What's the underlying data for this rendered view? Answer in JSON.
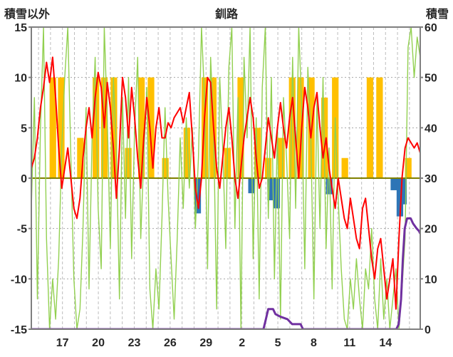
{
  "chart_data": {
    "type": "line",
    "title": "釧路",
    "left_axis": {
      "label": "積雪以外",
      "min": -15,
      "max": 15,
      "ticks": [
        15,
        10,
        5,
        0,
        -5,
        -10,
        -15
      ]
    },
    "right_axis": {
      "label": "積雪",
      "min": 0,
      "max": 60,
      "ticks": [
        60,
        50,
        40,
        30,
        20,
        10,
        0
      ]
    },
    "x_axis": {
      "min": -0.6,
      "max": 31.9,
      "tick_positions": [
        2,
        5,
        8,
        11,
        14,
        17,
        20,
        23,
        26,
        29
      ],
      "tick_labels": [
        "17",
        "20",
        "23",
        "26",
        "29",
        "2",
        "5",
        "8",
        "11",
        "14"
      ],
      "gridline_every_day": true
    },
    "grid": {
      "h_values": [
        10,
        5,
        -5,
        -10
      ],
      "zero_line_color": "#808000"
    },
    "series": [
      {
        "name": "sunshine-bars",
        "type": "bar",
        "axis": "left",
        "color": "#FFC000",
        "bar_width_days": 0.55,
        "points": [
          [
            1.2,
            10
          ],
          [
            1.9,
            10
          ],
          [
            3.5,
            4
          ],
          [
            4.8,
            10
          ],
          [
            5.5,
            10
          ],
          [
            6.3,
            10
          ],
          [
            7.5,
            3
          ],
          [
            8.6,
            10
          ],
          [
            9.4,
            10
          ],
          [
            10.6,
            2
          ],
          [
            12.4,
            5
          ],
          [
            13.9,
            10
          ],
          [
            14.6,
            10
          ],
          [
            15.8,
            3
          ],
          [
            16.9,
            10
          ],
          [
            18.3,
            5
          ],
          [
            19.2,
            2
          ],
          [
            20.3,
            4
          ],
          [
            21.2,
            10
          ],
          [
            21.9,
            10
          ],
          [
            22.8,
            10
          ],
          [
            23.9,
            8
          ],
          [
            24.8,
            10
          ],
          [
            25.6,
            2
          ],
          [
            27.7,
            10
          ],
          [
            28.5,
            10
          ],
          [
            30.9,
            2
          ]
        ]
      },
      {
        "name": "precip-bars",
        "type": "bar",
        "axis": "left",
        "color": "#2E75B6",
        "bar_width_days": 0.55,
        "points": [
          [
            13.3,
            -3.5
          ],
          [
            17.8,
            -1.5
          ],
          [
            19.4,
            -2.2
          ],
          [
            19.9,
            -3.0
          ],
          [
            24.3,
            -1.6
          ],
          [
            29.7,
            -1.2
          ],
          [
            30.2,
            -3.8
          ],
          [
            30.5,
            -2.6
          ]
        ]
      },
      {
        "name": "green-line",
        "type": "line",
        "axis": "left",
        "color": "#92D050",
        "width": 1.4,
        "values": [
          -3,
          8,
          -12,
          5,
          15,
          -6,
          -15,
          -10,
          -14,
          -8,
          3,
          10,
          15,
          2,
          -10,
          -15,
          -13,
          -5,
          7,
          -11,
          4,
          12,
          -3,
          -9,
          15,
          6,
          -7,
          10,
          3,
          -12,
          8,
          -4,
          10,
          -8,
          5,
          12,
          -6,
          2,
          9,
          -11,
          -15,
          -9,
          -13,
          -4,
          7,
          -2,
          -8,
          -14,
          -6,
          4,
          -3,
          6,
          -1,
          5,
          -5,
          2,
          15,
          8,
          -9,
          12,
          5,
          -13,
          10,
          3,
          -7,
          11,
          15,
          -5,
          8,
          -15,
          12,
          4,
          15,
          -8,
          6,
          -12,
          9,
          15,
          -4,
          10,
          -10,
          5,
          -14,
          8,
          2,
          -6,
          12,
          -3,
          15,
          7,
          -9,
          11,
          4,
          -12,
          8,
          -5,
          10,
          -7,
          3,
          -11,
          6,
          -2,
          -9,
          -14,
          -15,
          -10,
          -13,
          -8,
          -12,
          -15,
          -9,
          -11,
          -5,
          -12,
          -15,
          -8,
          -14,
          -10,
          -15,
          -12,
          -9,
          -15,
          -11,
          -6,
          13,
          15,
          10,
          14,
          12
        ]
      },
      {
        "name": "temperature-line",
        "type": "line",
        "axis": "left",
        "color": "#FF0000",
        "width": 2,
        "values": [
          1,
          2,
          4,
          7,
          9,
          11.5,
          9.5,
          12,
          8,
          3,
          -1,
          1,
          3,
          0,
          -3,
          -4,
          -2,
          2,
          5,
          7,
          4,
          8,
          10.5,
          9,
          5,
          9.5,
          7,
          3,
          -2,
          3,
          10,
          8,
          4,
          9,
          6,
          2,
          -1,
          4,
          8,
          5,
          1,
          5,
          7,
          4,
          4,
          5.5,
          5,
          6,
          6.5,
          7,
          5.5,
          7,
          8.5,
          4,
          -1,
          -3,
          0,
          6,
          10,
          9.5,
          5,
          1,
          -1,
          2,
          5,
          7,
          4,
          0,
          -2,
          1,
          4,
          6,
          8,
          6,
          2,
          -1,
          0,
          3,
          6,
          4,
          2,
          5,
          7.5,
          5,
          3,
          6,
          8,
          4,
          0,
          5,
          9,
          7,
          4,
          7,
          8.5,
          5,
          2,
          4,
          1,
          -1,
          -3,
          0,
          -2,
          -4,
          -5,
          -2,
          -4,
          -6,
          -7,
          -3,
          -2,
          -5,
          -8,
          -10,
          -7,
          -6,
          -9,
          -12,
          -10,
          -8,
          -13,
          -6,
          0,
          3,
          4,
          3.5,
          3,
          3.5,
          2.5
        ]
      },
      {
        "name": "snow-depth-line",
        "type": "line",
        "axis": "right",
        "color": "#7030A0",
        "width": 3,
        "points": [
          [
            -0.6,
            0
          ],
          [
            18.8,
            0
          ],
          [
            19.0,
            2
          ],
          [
            19.2,
            4
          ],
          [
            19.6,
            4
          ],
          [
            19.8,
            3
          ],
          [
            20.2,
            2.5
          ],
          [
            20.8,
            2
          ],
          [
            21.2,
            1
          ],
          [
            21.9,
            1
          ],
          [
            22.1,
            0
          ],
          [
            29.9,
            0
          ],
          [
            30.1,
            1
          ],
          [
            30.3,
            6
          ],
          [
            30.45,
            14
          ],
          [
            30.6,
            20
          ],
          [
            30.8,
            22
          ],
          [
            31.1,
            22
          ],
          [
            31.3,
            21
          ],
          [
            31.6,
            20
          ],
          [
            31.8,
            19.5
          ],
          [
            31.9,
            19
          ]
        ]
      }
    ],
    "frame_color": "#7F7F7F",
    "background": "#FFFFFF"
  }
}
